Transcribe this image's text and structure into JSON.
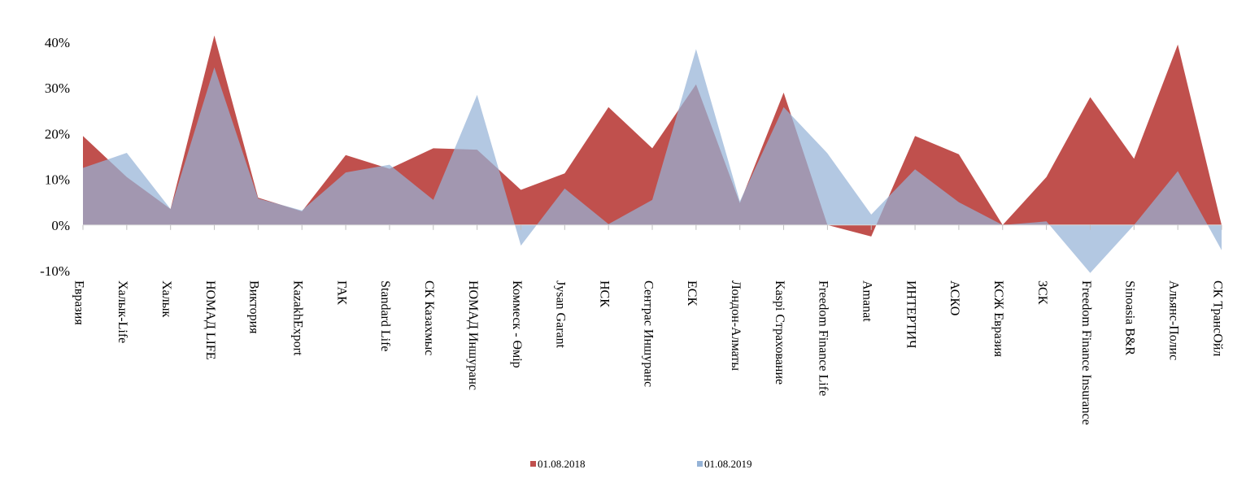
{
  "chart_data": {
    "type": "area",
    "categories": [
      "Евразия",
      "Халык-Life",
      "Халык",
      "НОМАД LIFE",
      "Виктория",
      "KazakhExport",
      "ГАК",
      "Standard Life",
      "СК Казахмыс",
      "НОМАД Иншуранс",
      "Коммеск - Өмір",
      "Jysan Garant",
      "НСК",
      "Сентрас Иншуранс",
      "ЕСК",
      "Лондон-Алматы",
      "Kaspi Страхование",
      "Freedom Finance Life",
      "Amanat",
      "ИНТЕРТИЧ",
      "АСКО",
      "КСЖ Евразия",
      "ЗСК",
      "Freedom Finance Insurance",
      "Sinoasia B&R",
      "Альянс-Полис",
      "СК ТрансОйл"
    ],
    "series": [
      {
        "name": "01.08.2018",
        "color": "#c0504d",
        "values": [
          19.5,
          10.5,
          3.5,
          41.5,
          6,
          3,
          15.3,
          12.3,
          16.8,
          16.5,
          7.7,
          11.3,
          25.8,
          16.8,
          30.8,
          4.8,
          29,
          0,
          -2.5,
          19.5,
          15.5,
          0,
          10.5,
          28,
          14.5,
          39.5,
          0
        ]
      },
      {
        "name": "01.08.2019",
        "color": "#95b3d7",
        "values": [
          12.5,
          15.8,
          3.5,
          34.5,
          5.8,
          3.2,
          11.5,
          13.2,
          5.5,
          28.5,
          -4.5,
          8,
          0.2,
          5.5,
          38.5,
          5.2,
          25.8,
          15.7,
          2.3,
          12.2,
          5,
          0,
          0.8,
          -10.5,
          0,
          11.8,
          -5.5
        ]
      }
    ],
    "y_ticks": [
      "-10%",
      "0%",
      "10%",
      "20%",
      "30%",
      "40%"
    ],
    "ylim": [
      -10,
      40
    ],
    "legend": [
      "01.08.2018",
      "01.08.2019"
    ],
    "legend_position": "bottom",
    "grid": false
  }
}
